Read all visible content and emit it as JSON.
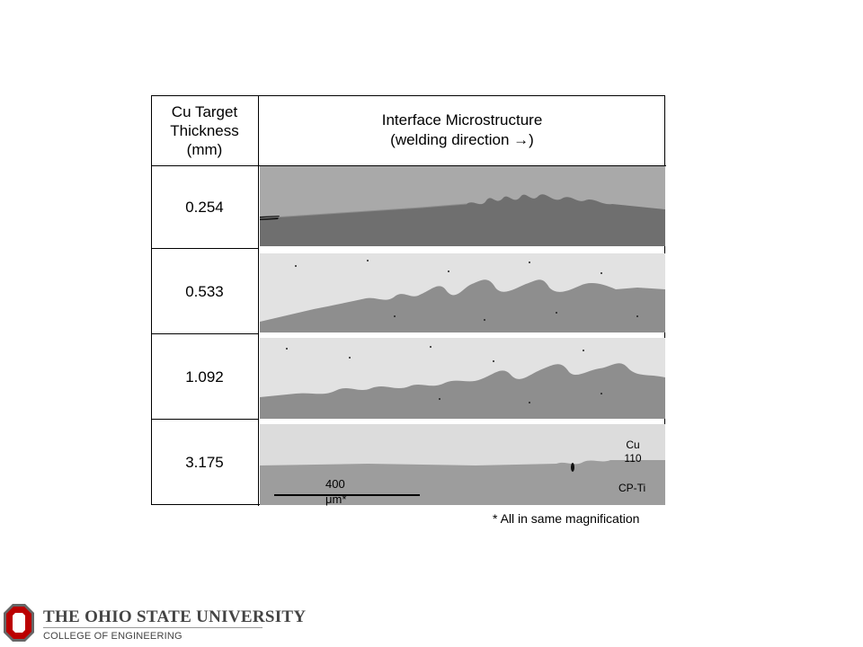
{
  "table": {
    "header_left": "Cu Target\nThickness\n(mm)",
    "header_right_line1": "Interface Microstructure",
    "header_right_line2": "(welding direction →)",
    "rows": [
      {
        "thickness": "0.254"
      },
      {
        "thickness": "0.533"
      },
      {
        "thickness": "1.092"
      },
      {
        "thickness": "3.175"
      }
    ]
  },
  "micrograph_labels": {
    "top_material": "Cu\n110",
    "bottom_material": "CP-Ti",
    "scale_bar": "400\nμm*"
  },
  "note": "* All in same magnification",
  "footer": {
    "university_the": "T",
    "university": "THE OHIO STATE UNIVERSITY",
    "college": "COLLEGE OF ENGINEERING"
  },
  "colors": {
    "logo_red": "#bb0000",
    "logo_grey": "#666666"
  }
}
